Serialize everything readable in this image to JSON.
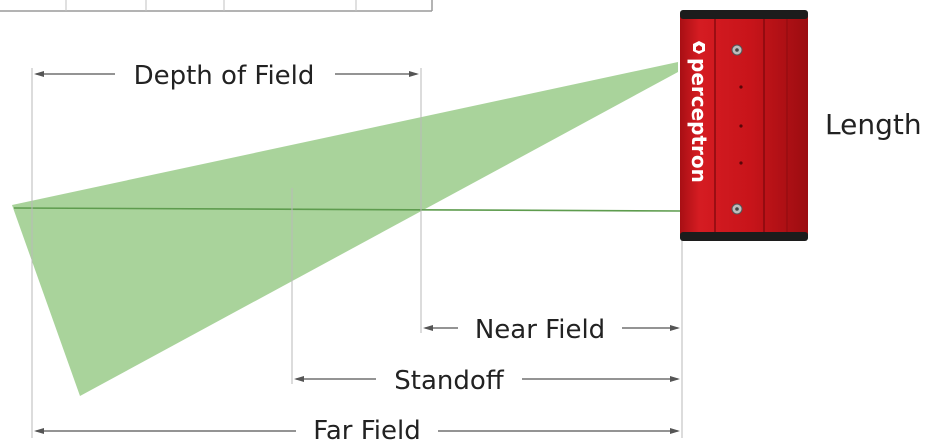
{
  "labels": {
    "depth_of_field": "Depth of Field",
    "near_field": "Near Field",
    "standoff": "Standoff",
    "far_field": "Far Field",
    "length": "Length"
  },
  "device": {
    "brand": "perceptron",
    "body_color": "#c8141a",
    "dark_color": "#8e0b0f"
  },
  "beam": {
    "color": "#8cc47a"
  }
}
